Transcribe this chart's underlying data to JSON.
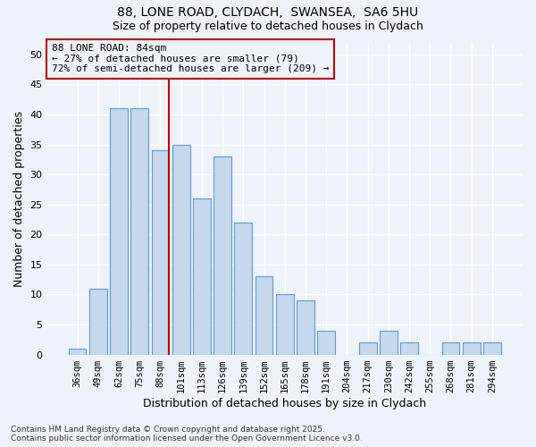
{
  "title1": "88, LONE ROAD, CLYDACH,  SWANSEA,  SA6 5HU",
  "title2": "Size of property relative to detached houses in Clydach",
  "xlabel": "Distribution of detached houses by size in Clydach",
  "ylabel": "Number of detached properties",
  "categories": [
    "36sqm",
    "49sqm",
    "62sqm",
    "75sqm",
    "88sqm",
    "101sqm",
    "113sqm",
    "126sqm",
    "139sqm",
    "152sqm",
    "165sqm",
    "178sqm",
    "191sqm",
    "204sqm",
    "217sqm",
    "230sqm",
    "242sqm",
    "255sqm",
    "268sqm",
    "281sqm",
    "294sqm"
  ],
  "values": [
    1,
    11,
    41,
    41,
    34,
    35,
    26,
    33,
    22,
    13,
    10,
    9,
    4,
    0,
    2,
    4,
    2,
    0,
    2,
    2,
    2
  ],
  "bar_color": "#c5d8ed",
  "bar_edge_color": "#5b9bd5",
  "highlight_index": 4,
  "highlight_line_color": "#c00000",
  "annotation_line1": "88 LONE ROAD: 84sqm",
  "annotation_line2": "← 27% of detached houses are smaller (79)",
  "annotation_line3": "72% of semi-detached houses are larger (209) →",
  "annotation_box_color": "#c00000",
  "ylim": [
    0,
    52
  ],
  "yticks": [
    0,
    5,
    10,
    15,
    20,
    25,
    30,
    35,
    40,
    45,
    50
  ],
  "background_color": "#eef2f9",
  "grid_color": "#ffffff",
  "footer": "Contains HM Land Registry data © Crown copyright and database right 2025.\nContains public sector information licensed under the Open Government Licence v3.0."
}
